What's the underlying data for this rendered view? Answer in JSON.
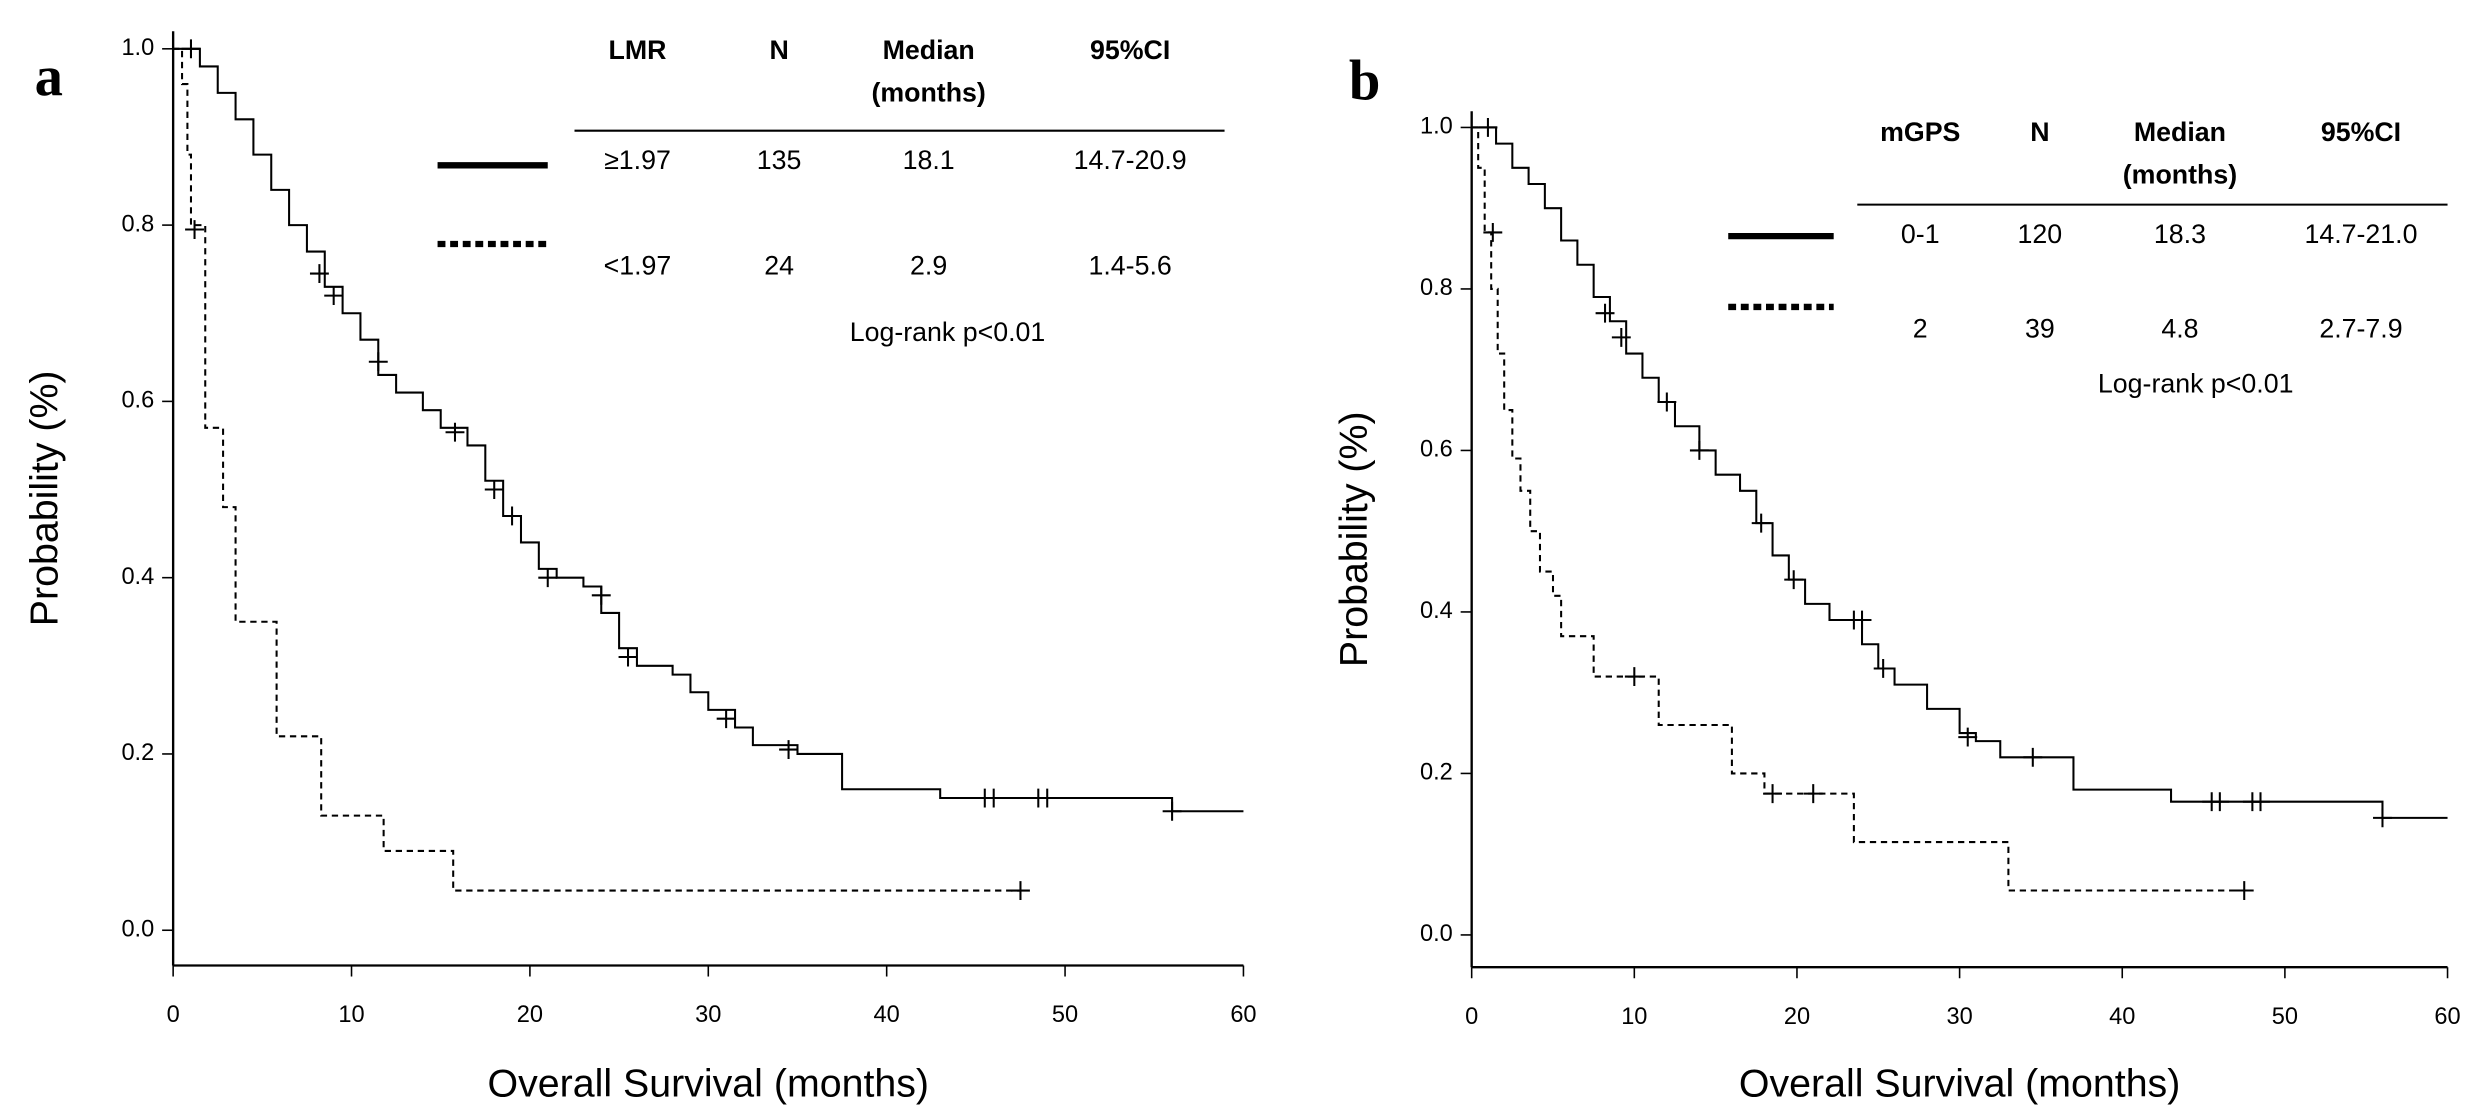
{
  "chart_data": [
    {
      "type": "step",
      "panel": "a",
      "xlabel": "Overall Survival (months)",
      "ylabel": "Probability (%)",
      "xlim": [
        0,
        60
      ],
      "xticks": [
        0,
        10,
        20,
        30,
        40,
        50,
        60
      ],
      "ylim": [
        -0.04,
        1.02
      ],
      "yticks": [
        {
          "value": 0,
          "label": "0.0"
        },
        0.2,
        0.4,
        0.6,
        0.8,
        {
          "value": 1,
          "label": "1.0"
        }
      ],
      "table": {
        "columns": [
          "LMR",
          "N",
          [
            "Median",
            "(months)"
          ],
          "95%CI"
        ],
        "rows": [
          [
            135,
            18.1,
            "14.7-20.9"
          ],
          [
            24,
            2.9,
            "1.4-5.6"
          ]
        ]
      },
      "annotation": "Log-rank p<0.01",
      "series": [
        {
          "name": "≥1.97",
          "color": "#000000",
          "dashed": false,
          "x": [
            0,
            1.5,
            2.5,
            3.5,
            4.5,
            5.5,
            6.5,
            7.5,
            8.5,
            9.5,
            10.5,
            11.5,
            12.5,
            14,
            15,
            16.5,
            17.5,
            18.5,
            19.5,
            20.5,
            21.5,
            23,
            24,
            25,
            26,
            28,
            29,
            30,
            31.5,
            32.5,
            35,
            37.5,
            43,
            56,
            60
          ],
          "values": [
            1.0,
            0.98,
            0.95,
            0.92,
            0.88,
            0.84,
            0.8,
            0.77,
            0.73,
            0.7,
            0.67,
            0.63,
            0.61,
            0.59,
            0.57,
            0.55,
            0.51,
            0.47,
            0.44,
            0.41,
            0.4,
            0.39,
            0.36,
            0.32,
            0.3,
            0.29,
            0.27,
            0.25,
            0.23,
            0.21,
            0.2,
            0.16,
            0.15,
            0.135,
            0.135
          ],
          "censored": {
            "x": [
              1,
              8.2,
              9,
              11.5,
              15.8,
              18,
              19,
              21,
              24,
              25.5,
              31,
              34.5,
              45.5,
              46,
              48.5,
              49,
              56
            ],
            "values": [
              1.0,
              0.745,
              0.72,
              0.645,
              0.565,
              0.5,
              0.47,
              0.4,
              0.38,
              0.31,
              0.24,
              0.205,
              0.15,
              0.15,
              0.15,
              0.15,
              0.135
            ]
          }
        },
        {
          "name": "<1.97",
          "color": "#000000",
          "dashed": true,
          "x": [
            0,
            0.5,
            0.8,
            1,
            1.8,
            2.8,
            3.5,
            5.8,
            8.3,
            11.8,
            15.7,
            47.5
          ],
          "values": [
            1.0,
            0.96,
            0.88,
            0.8,
            0.57,
            0.48,
            0.35,
            0.22,
            0.13,
            0.09,
            0.045,
            0.045
          ],
          "censored": {
            "x": [
              1.2,
              47.5
            ],
            "values": [
              0.795,
              0.045
            ]
          }
        }
      ]
    },
    {
      "type": "step",
      "panel": "b",
      "xlabel": "Overall Survival (months)",
      "ylabel": "Probability (%)",
      "xlim": [
        0,
        60
      ],
      "xticks": [
        0,
        10,
        20,
        30,
        40,
        50,
        60
      ],
      "ylim": [
        -0.04,
        1.02
      ],
      "yticks": [
        {
          "value": 0,
          "label": "0.0"
        },
        0.2,
        0.4,
        0.6,
        0.8,
        {
          "value": 1,
          "label": "1.0"
        }
      ],
      "table": {
        "columns": [
          "mGPS",
          "N",
          [
            "Median",
            "(months)"
          ],
          "95%CI"
        ],
        "rows": [
          [
            120,
            18.3,
            "14.7-21.0"
          ],
          [
            39,
            4.8,
            "2.7-7.9"
          ]
        ]
      },
      "annotation": "Log-rank p<0.01",
      "series": [
        {
          "name": "0-1",
          "color": "#000000",
          "dashed": false,
          "x": [
            0,
            1.5,
            2.5,
            3.5,
            4.5,
            5.5,
            6.5,
            7.5,
            8.5,
            9.5,
            10.5,
            11.5,
            12.5,
            14,
            15,
            16.5,
            17.5,
            18.5,
            19.5,
            20.5,
            22,
            24,
            25,
            26,
            28,
            30,
            31,
            32.5,
            37,
            43,
            56,
            60
          ],
          "values": [
            1.0,
            0.98,
            0.95,
            0.93,
            0.9,
            0.86,
            0.83,
            0.79,
            0.76,
            0.72,
            0.69,
            0.66,
            0.63,
            0.6,
            0.57,
            0.55,
            0.51,
            0.47,
            0.44,
            0.41,
            0.39,
            0.36,
            0.33,
            0.31,
            0.28,
            0.25,
            0.24,
            0.22,
            0.18,
            0.165,
            0.145,
            0.145
          ],
          "censored": {
            "x": [
              1,
              8.2,
              9.2,
              12,
              14,
              17.8,
              19.8,
              23.5,
              24,
              25.3,
              30.5,
              34.5,
              45.5,
              46,
              48,
              48.5,
              56
            ],
            "values": [
              1.0,
              0.77,
              0.74,
              0.66,
              0.6,
              0.51,
              0.44,
              0.39,
              0.39,
              0.33,
              0.245,
              0.22,
              0.165,
              0.165,
              0.165,
              0.165,
              0.145
            ]
          }
        },
        {
          "name": "2",
          "color": "#000000",
          "dashed": true,
          "x": [
            0,
            0.4,
            0.8,
            1.2,
            1.6,
            2,
            2.5,
            3,
            3.6,
            4.2,
            5,
            5.5,
            7.5,
            11.5,
            16,
            18,
            23.5,
            33,
            47.5
          ],
          "values": [
            1.0,
            0.95,
            0.87,
            0.8,
            0.72,
            0.65,
            0.59,
            0.55,
            0.5,
            0.45,
            0.42,
            0.37,
            0.32,
            0.26,
            0.2,
            0.175,
            0.115,
            0.055,
            0.055
          ],
          "censored": {
            "x": [
              1.3,
              10,
              18.5,
              21,
              47.5
            ],
            "values": [
              0.87,
              0.32,
              0.175,
              0.175,
              0.055
            ]
          }
        }
      ]
    }
  ]
}
